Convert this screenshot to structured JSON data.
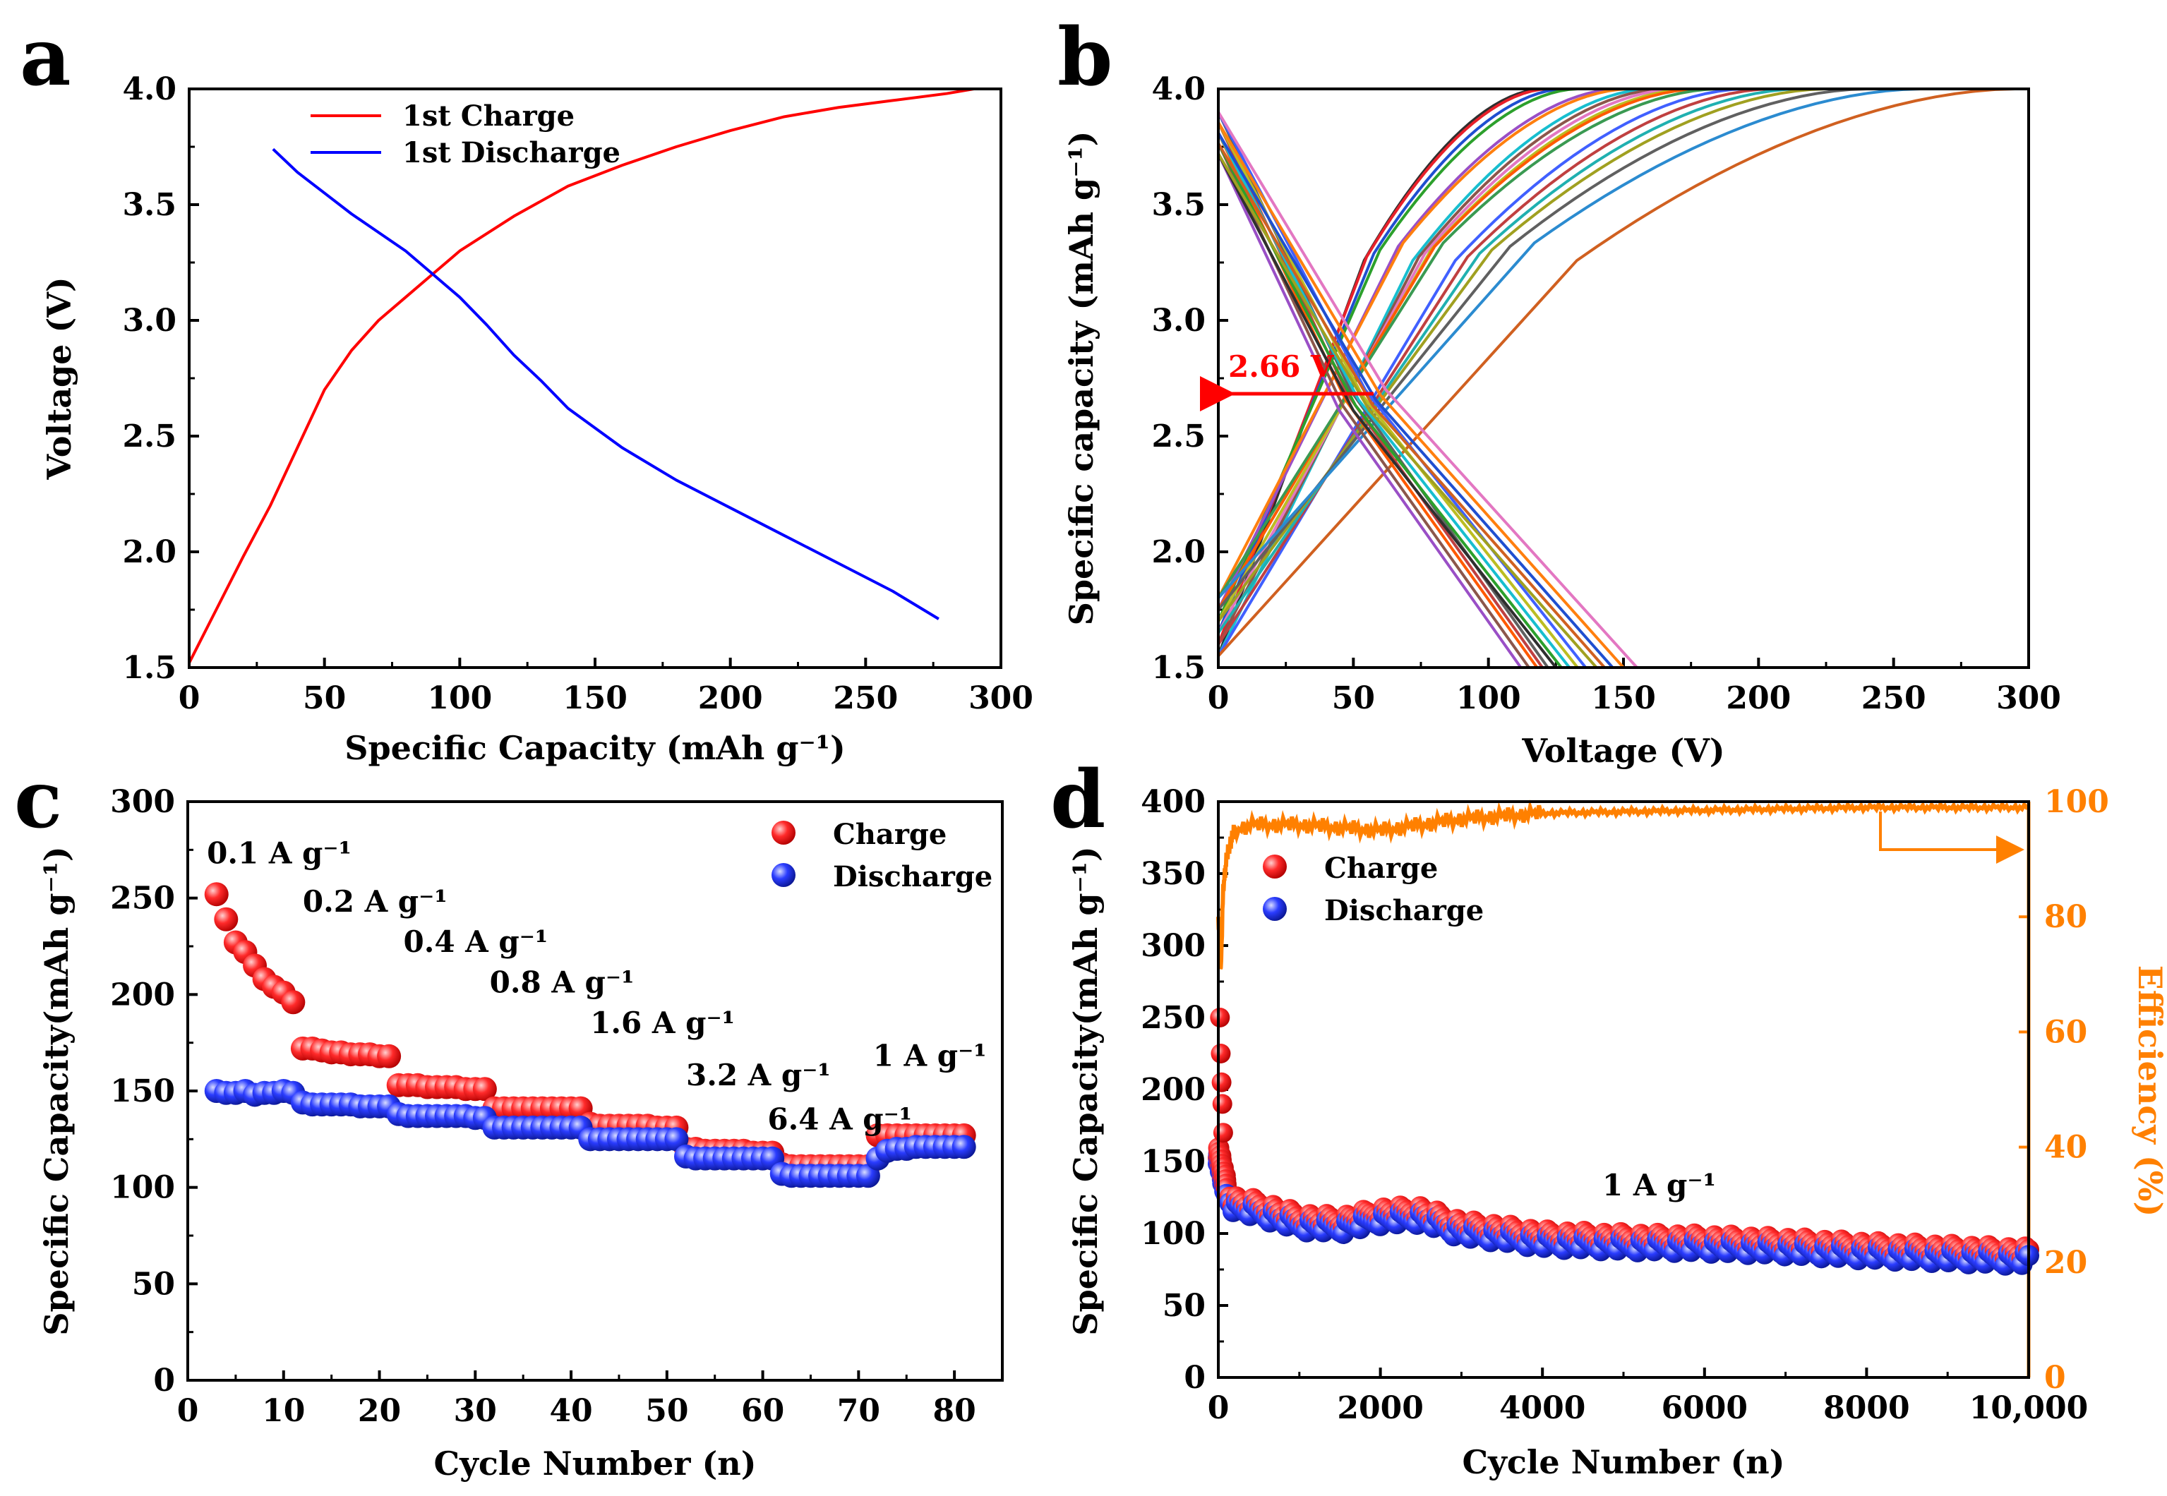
{
  "panels": {
    "a": {
      "letter": "a"
    },
    "b": {
      "letter": "b"
    },
    "c": {
      "letter": "c"
    },
    "d": {
      "letter": "d"
    }
  },
  "chart_data": [
    {
      "id": "a",
      "type": "line",
      "xlabel": "Specific Capacity (mAh g⁻¹)",
      "ylabel": "Voltage (V)",
      "xlim": [
        0,
        300
      ],
      "ylim": [
        1.5,
        4.0
      ],
      "xticks": [
        0,
        50,
        100,
        150,
        200,
        250,
        300
      ],
      "yticks": [
        1.5,
        2.0,
        2.5,
        3.0,
        3.5,
        4.0
      ],
      "ytick_labels": [
        "1.5",
        "2.0",
        "2.5",
        "3.0",
        "3.5",
        "4.0"
      ],
      "legend_position": "top-left",
      "series": [
        {
          "name": "1st Charge",
          "color": "#ff0000",
          "x": [
            0,
            10,
            20,
            30,
            40,
            50,
            60,
            70,
            80,
            90,
            100,
            120,
            140,
            160,
            180,
            200,
            220,
            240,
            260,
            280,
            290
          ],
          "y": [
            1.52,
            1.75,
            1.98,
            2.2,
            2.45,
            2.7,
            2.87,
            3.0,
            3.1,
            3.2,
            3.3,
            3.45,
            3.58,
            3.67,
            3.75,
            3.82,
            3.88,
            3.92,
            3.95,
            3.98,
            4.0
          ]
        },
        {
          "name": "1st Discharge",
          "color": "#0000ff",
          "x": [
            31,
            40,
            50,
            60,
            70,
            80,
            90,
            100,
            110,
            120,
            130,
            140,
            160,
            180,
            200,
            220,
            240,
            260,
            277
          ],
          "y": [
            3.74,
            3.64,
            3.55,
            3.46,
            3.38,
            3.3,
            3.2,
            3.1,
            2.98,
            2.85,
            2.74,
            2.62,
            2.45,
            2.31,
            2.19,
            2.07,
            1.95,
            1.83,
            1.71
          ]
        }
      ]
    },
    {
      "id": "b",
      "type": "line",
      "xlabel": "Voltage (V)",
      "ylabel": "Specific capacity (mAh g⁻¹)",
      "xlim": [
        0,
        300
      ],
      "ylim": [
        1.5,
        4.0
      ],
      "xticks": [
        0,
        50,
        100,
        150,
        200,
        250,
        300
      ],
      "yticks": [
        1.5,
        2.0,
        2.5,
        3.0,
        3.5,
        4.0
      ],
      "ytick_labels": [
        "1.5",
        "2.0",
        "2.5",
        "3.0",
        "3.5",
        "4.0"
      ],
      "annotation": {
        "text": "2.66 V",
        "x": 58,
        "y": 2.66,
        "color": "#ff0000"
      },
      "charge_end_capacities": [
        120,
        122,
        128,
        133,
        148,
        152,
        160,
        165,
        170,
        175,
        178,
        185,
        195,
        205,
        215,
        225,
        240,
        260,
        295
      ],
      "discharge_end_capacities": [
        112,
        115,
        118,
        120,
        122,
        125,
        127,
        130,
        133,
        136,
        140,
        143,
        146,
        150,
        155
      ],
      "palette": [
        "#2f2f2f",
        "#e8202a",
        "#1f4fd0",
        "#2ca02c",
        "#9a4fc6",
        "#ff7f0e",
        "#17becf",
        "#8c564b",
        "#e377c2",
        "#bcbd22",
        "#ff5a00",
        "#3a9a52",
        "#4060ff",
        "#c04040",
        "#20b0b0",
        "#a0a020",
        "#606060",
        "#2b8bd0",
        "#d06020"
      ]
    },
    {
      "id": "c",
      "type": "scatter",
      "xlabel": "Cycle Number (n)",
      "ylabel": "Specific Capacity(mAh g⁻¹)",
      "xlim": [
        0,
        85
      ],
      "ylim": [
        0,
        300
      ],
      "xticks": [
        0,
        10,
        20,
        30,
        40,
        50,
        60,
        70,
        80
      ],
      "yticks": [
        0,
        50,
        100,
        150,
        200,
        250,
        300
      ],
      "legend_position": "top-right",
      "rate_labels": [
        {
          "text": "0.1 A g⁻¹",
          "x": 2,
          "y": 268
        },
        {
          "text": "0.2 A g⁻¹",
          "x": 12,
          "y": 243
        },
        {
          "text": "0.4 A g⁻¹",
          "x": 22.5,
          "y": 222
        },
        {
          "text": "0.8 A g⁻¹",
          "x": 31.5,
          "y": 201
        },
        {
          "text": "1.6 A g⁻¹",
          "x": 42,
          "y": 180
        },
        {
          "text": "3.2 A g⁻¹",
          "x": 52,
          "y": 153
        },
        {
          "text": "1 A g⁻¹",
          "x": 71.5,
          "y": 163
        },
        {
          "text": "6.4 A g⁻¹",
          "x": 60.5,
          "y": 130
        }
      ],
      "series": [
        {
          "name": "Charge",
          "color": "#ff2020",
          "x": [
            3,
            4,
            5,
            6,
            7,
            8,
            9,
            10,
            11,
            12,
            13,
            14,
            15,
            16,
            17,
            18,
            19,
            20,
            21,
            22,
            23,
            24,
            25,
            26,
            27,
            28,
            29,
            30,
            31,
            32,
            33,
            34,
            35,
            36,
            37,
            38,
            39,
            40,
            41,
            42,
            43,
            44,
            45,
            46,
            47,
            48,
            49,
            50,
            51,
            52,
            53,
            54,
            55,
            56,
            57,
            58,
            59,
            60,
            61,
            62,
            63,
            64,
            65,
            66,
            67,
            68,
            69,
            70,
            71,
            72,
            73,
            74,
            75,
            76,
            77,
            78,
            79,
            80,
            81
          ],
          "y": [
            252,
            239,
            227,
            222,
            215,
            208,
            204,
            201,
            196,
            172,
            172,
            171,
            170,
            170,
            169,
            169,
            169,
            168,
            168,
            153,
            153,
            153,
            152,
            152,
            152,
            152,
            151,
            151,
            151,
            141,
            141,
            141,
            141,
            141,
            141,
            141,
            141,
            141,
            141,
            133,
            132,
            132,
            132,
            132,
            132,
            132,
            131,
            131,
            131,
            120,
            120,
            119,
            119,
            119,
            119,
            119,
            118,
            118,
            118,
            112,
            111,
            111,
            111,
            111,
            111,
            111,
            111,
            111,
            111,
            127,
            127,
            127,
            127,
            127,
            127,
            127,
            127,
            127,
            127
          ]
        },
        {
          "name": "Discharge",
          "color": "#2030ff",
          "x": [
            3,
            4,
            5,
            6,
            7,
            8,
            9,
            10,
            11,
            12,
            13,
            14,
            15,
            16,
            17,
            18,
            19,
            20,
            21,
            22,
            23,
            24,
            25,
            26,
            27,
            28,
            29,
            30,
            31,
            32,
            33,
            34,
            35,
            36,
            37,
            38,
            39,
            40,
            41,
            42,
            43,
            44,
            45,
            46,
            47,
            48,
            49,
            50,
            51,
            52,
            53,
            54,
            55,
            56,
            57,
            58,
            59,
            60,
            61,
            62,
            63,
            64,
            65,
            66,
            67,
            68,
            69,
            70,
            71,
            72,
            73,
            74,
            75,
            76,
            77,
            78,
            79,
            80,
            81
          ],
          "y": [
            150,
            149,
            149,
            150,
            148,
            149,
            149,
            150,
            149,
            144,
            143,
            143,
            143,
            143,
            143,
            142,
            142,
            142,
            142,
            138,
            137,
            137,
            137,
            137,
            137,
            137,
            137,
            136,
            136,
            131,
            131,
            131,
            131,
            131,
            131,
            131,
            131,
            131,
            131,
            125,
            125,
            125,
            125,
            125,
            125,
            125,
            125,
            125,
            125,
            116,
            115,
            115,
            115,
            115,
            115,
            115,
            115,
            115,
            115,
            107,
            106,
            106,
            106,
            106,
            106,
            106,
            106,
            106,
            106,
            115,
            119,
            120,
            120,
            121,
            121,
            121,
            121,
            121,
            121
          ]
        }
      ]
    },
    {
      "id": "d",
      "type": "scatter",
      "xlabel": "Cycle Number (n)",
      "ylabel": "Specific Capacity(mAh g⁻¹)",
      "y2label": "Efficiency (%)",
      "xlim": [
        0,
        10000
      ],
      "ylim": [
        0,
        400
      ],
      "y2lim": [
        0,
        100
      ],
      "xticks": [
        0,
        2000,
        4000,
        6000,
        8000,
        10000
      ],
      "xtick_labels": [
        "0",
        "2000",
        "4000",
        "6000",
        "8000",
        "10,000"
      ],
      "yticks": [
        0,
        50,
        100,
        150,
        200,
        250,
        300,
        350,
        400
      ],
      "y2ticks": [
        0,
        20,
        40,
        60,
        80,
        100
      ],
      "legend_position": "top-left",
      "annotation": {
        "text": "1 A g⁻¹",
        "x": 4800,
        "y": 160
      },
      "efficiency_color": "#ff8000",
      "capacity_envelope": {
        "x": [
          0,
          100,
          200,
          500,
          1000,
          1500,
          2000,
          2500,
          3000,
          3500,
          4000,
          5000,
          6000,
          7000,
          8000,
          9000,
          10000
        ],
        "y": [
          155,
          130,
          120,
          117,
          108,
          106,
          112,
          113,
          103,
          100,
          96,
          94,
          93,
          91,
          88,
          86,
          84
        ]
      },
      "efficiency": {
        "x": [
          0,
          30,
          60,
          100,
          150,
          200,
          400,
          1000,
          2000,
          3000,
          4000,
          6000,
          8000,
          10000
        ],
        "y": [
          80,
          70,
          85,
          90,
          93,
          95,
          96,
          96,
          95,
          97,
          98,
          98.5,
          99,
          99
        ]
      },
      "series": [
        {
          "name": "Charge",
          "color": "#ff2020"
        },
        {
          "name": "Discharge",
          "color": "#2030ff"
        }
      ]
    }
  ]
}
